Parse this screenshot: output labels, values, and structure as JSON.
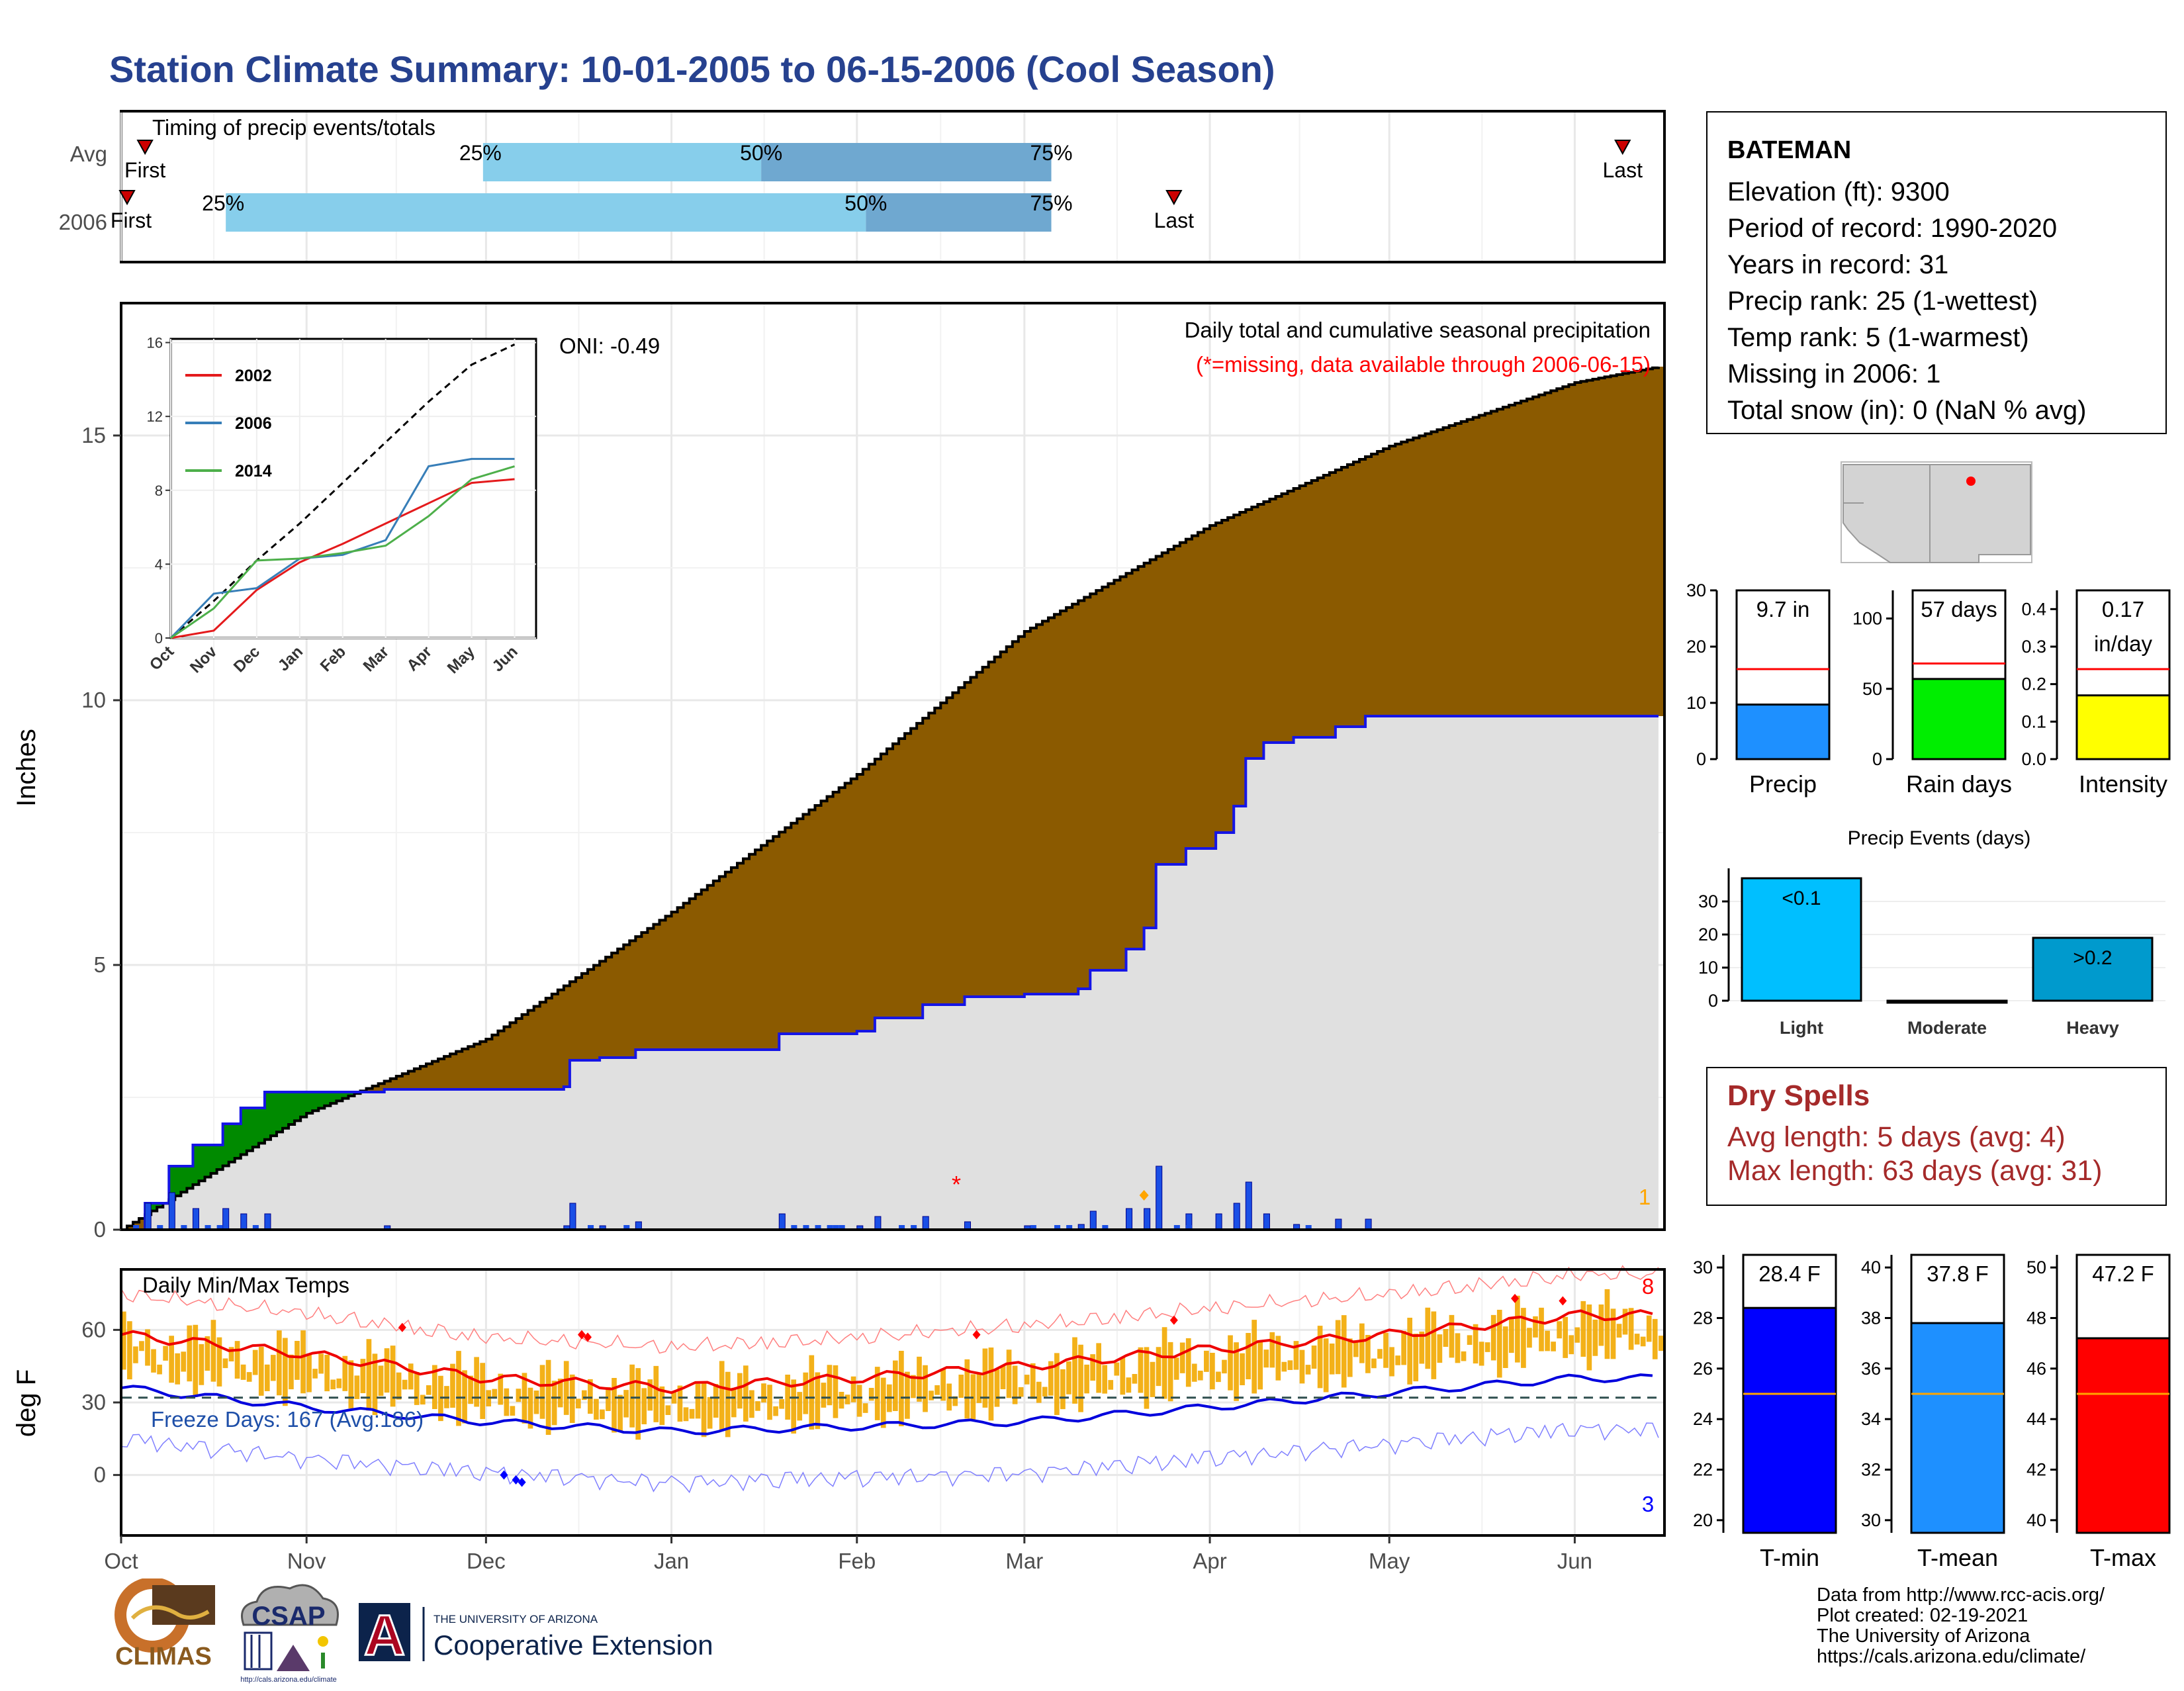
{
  "page": {
    "title": "Station Climate Summary: 10-01-2005 to 06-15-2006 (Cool Season)",
    "months": [
      "Oct",
      "Nov",
      "Dec",
      "Jan",
      "Feb",
      "Mar",
      "Apr",
      "May",
      "Jun"
    ]
  },
  "timing": {
    "label": "Timing of precip events/totals",
    "rows": [
      "Avg",
      "2006"
    ],
    "avg": {
      "first": "First",
      "last": "Last",
      "p25": "25%",
      "p50": "50%",
      "p75": "75%"
    },
    "y2006": {
      "first": "First",
      "last": "Last",
      "p25": "25%",
      "p50": "50%",
      "p75": "75%"
    }
  },
  "precip": {
    "ylabel": "Inches",
    "yticks": [
      "0",
      "5",
      "10",
      "15"
    ],
    "header": "Daily total and cumulative seasonal precipitation",
    "missing_note": "(*=missing, data available through 2006-06-15)",
    "oni": "ONI: -0.49",
    "missing_count": "1",
    "missing_marker": "*"
  },
  "inset": {
    "yticks": [
      "0",
      "4",
      "8",
      "12",
      "16"
    ],
    "months": [
      "Oct",
      "Nov",
      "Dec",
      "Jan",
      "Feb",
      "Mar",
      "Apr",
      "May",
      "Jun"
    ],
    "legend": [
      "2002",
      "2006",
      "2014"
    ],
    "colors": {
      "2002": "#e41a1c",
      "2006": "#377eb8",
      "2014": "#4daf4a"
    }
  },
  "temps": {
    "ylabel": "deg F",
    "yticks": [
      "0",
      "30",
      "60"
    ],
    "label": "Daily Min/Max Temps",
    "freeze": "Freeze Days: 167 (Avg:186)",
    "count_hot": "8",
    "count_cold": "3"
  },
  "station": {
    "name": "BATEMAN",
    "lines": [
      "Elevation (ft): 9300",
      "Period of record: 1990-2020",
      "Years in record: 31",
      "Precip rank: 25 (1-wettest)",
      "Temp rank: 5 (1-warmest)",
      "Missing in 2006: 1",
      "Total snow (in): 0 (NaN % avg)"
    ]
  },
  "mini_bars": [
    {
      "label": "Precip",
      "value_label": "9.7 in",
      "yticks": [
        "0",
        "10",
        "20",
        "30"
      ],
      "color": "#1e90ff"
    },
    {
      "label": "Rain days",
      "value_label": "57 days",
      "yticks": [
        "0",
        "50",
        "100"
      ],
      "color": "#00ee00"
    },
    {
      "label": "Intensity",
      "value_label": "0.17 in/day",
      "value_line1": "0.17",
      "value_line2": "in/day",
      "yticks": [
        "0.0",
        "0.1",
        "0.2",
        "0.3",
        "0.4"
      ],
      "color": "#ffff00"
    }
  ],
  "events": {
    "title": "Precip Events (days)",
    "yticks": [
      "0",
      "10",
      "20",
      "30"
    ],
    "categories": [
      "Light",
      "Moderate",
      "Heavy"
    ],
    "labels": [
      "<0.1",
      "",
      ">0.2"
    ]
  },
  "dry_spells": {
    "title": "Dry Spells",
    "avg": "Avg length: 5 days (avg: 4)",
    "max": "Max length: 63 days (avg: 31)"
  },
  "temp_bars": [
    {
      "label": "T-min",
      "value_label": "28.4 F",
      "yticks": [
        "20",
        "22",
        "24",
        "26",
        "28",
        "30"
      ],
      "color": "#0000ff"
    },
    {
      "label": "T-mean",
      "value_label": "37.8 F",
      "yticks": [
        "30",
        "32",
        "34",
        "36",
        "38",
        "40"
      ],
      "color": "#1e90ff"
    },
    {
      "label": "T-max",
      "value_label": "47.2 F",
      "yticks": [
        "40",
        "42",
        "44",
        "46",
        "48",
        "50"
      ],
      "color": "#ff0000"
    }
  ],
  "credits": [
    "Data from http://www.rcc-acis.org/",
    "Plot created: 02-19-2021",
    "The University of Arizona",
    "https://cals.arizona.edu/climate/"
  ],
  "logos": {
    "climas": "CLIMAS",
    "csap": "CSAP",
    "csap_url": "http://cals.arizona.edu/climate",
    "ua_small": "THE UNIVERSITY OF ARIZONA",
    "ua_big": "Cooperative Extension",
    "ua_letter": "A"
  },
  "chart_data": [
    {
      "type": "area",
      "name": "cumulative precipitation",
      "xlabel": "",
      "ylabel": "Inches",
      "x": [
        "Oct 1",
        "Nov 1",
        "Dec 1",
        "Jan 1",
        "Feb 1",
        "Mar 1",
        "Apr 1",
        "May 1",
        "Jun 1",
        "Jun 15"
      ],
      "ylim": [
        0,
        17.5
      ],
      "series": [
        {
          "values": [
            0.0,
            2.2,
            3.6,
            6.0,
            8.6,
            11.3,
            13.3,
            14.8,
            16.0,
            16.3
          ]
        },
        {
          "values": [
            0.0,
            2.6,
            3.2,
            4.3,
            4.6,
            5.4,
            9.5,
            9.7,
            9.7,
            9.7
          ]
        }
      ]
    },
    {
      "type": "line",
      "name": "inset cumulative comparison",
      "x": [
        "Oct",
        "Nov",
        "Dec",
        "Jan",
        "Feb",
        "Mar",
        "Apr",
        "May",
        "Jun"
      ],
      "ylim": [
        0,
        16
      ],
      "series": [
        {
          "name": "",
          "values": [
            0.0,
            2.0,
            4.2,
            6.2,
            8.4,
            10.6,
            12.8,
            14.8,
            15.9
          ]
        },
        {
          "name": "2002",
          "values": [
            0.0,
            0.4,
            2.6,
            4.1,
            5.1,
            6.2,
            7.3,
            8.4,
            8.6
          ]
        },
        {
          "name": "2006",
          "values": [
            0.0,
            2.4,
            2.7,
            4.3,
            4.5,
            5.3,
            9.3,
            9.7,
            9.7
          ]
        },
        {
          "name": "2014",
          "values": [
            0.0,
            1.6,
            4.2,
            4.3,
            4.6,
            5.0,
            6.6,
            8.6,
            9.3
          ]
        }
      ]
    },
    {
      "type": "line",
      "name": "daily temperatures",
      "ylabel": "deg F",
      "x": [
        "Oct",
        "Nov",
        "Dec",
        "Jan",
        "Feb",
        "Mar",
        "Apr",
        "May",
        "Jun"
      ],
      "ylim": [
        -20,
        80
      ],
      "series": [
        {
          "values": [
            58,
            50,
            40,
            36,
            40,
            45,
            52,
            58,
            66
          ]
        },
        {
          "values": [
            36,
            28,
            22,
            18,
            20,
            22,
            28,
            34,
            40
          ]
        }
      ]
    },
    {
      "type": "bar",
      "categories": [
        "Precip"
      ],
      "values": [
        9.7
      ],
      "reference": 16,
      "ylim": [
        0,
        30
      ]
    },
    {
      "type": "bar",
      "categories": [
        "Rain days"
      ],
      "values": [
        57
      ],
      "reference": 68,
      "ylim": [
        0,
        120
      ]
    },
    {
      "type": "bar",
      "categories": [
        "Intensity"
      ],
      "values": [
        0.17
      ],
      "reference": 0.24,
      "ylim": [
        0,
        0.45
      ]
    },
    {
      "type": "bar",
      "title": "Precip Events (days)",
      "categories": [
        "Light",
        "Moderate",
        "Heavy"
      ],
      "values": [
        37,
        0,
        19
      ],
      "ylim": [
        0,
        40
      ]
    },
    {
      "type": "bar",
      "categories": [
        "T-min"
      ],
      "values": [
        28.4
      ],
      "reference": 25.0,
      "ylim": [
        19.5,
        30.5
      ]
    },
    {
      "type": "bar",
      "categories": [
        "T-mean"
      ],
      "values": [
        37.8
      ],
      "reference": 35.0,
      "ylim": [
        29.5,
        40.5
      ]
    },
    {
      "type": "bar",
      "categories": [
        "T-max"
      ],
      "values": [
        47.2
      ],
      "reference": 45.0,
      "ylim": [
        39.5,
        50.5
      ]
    }
  ]
}
